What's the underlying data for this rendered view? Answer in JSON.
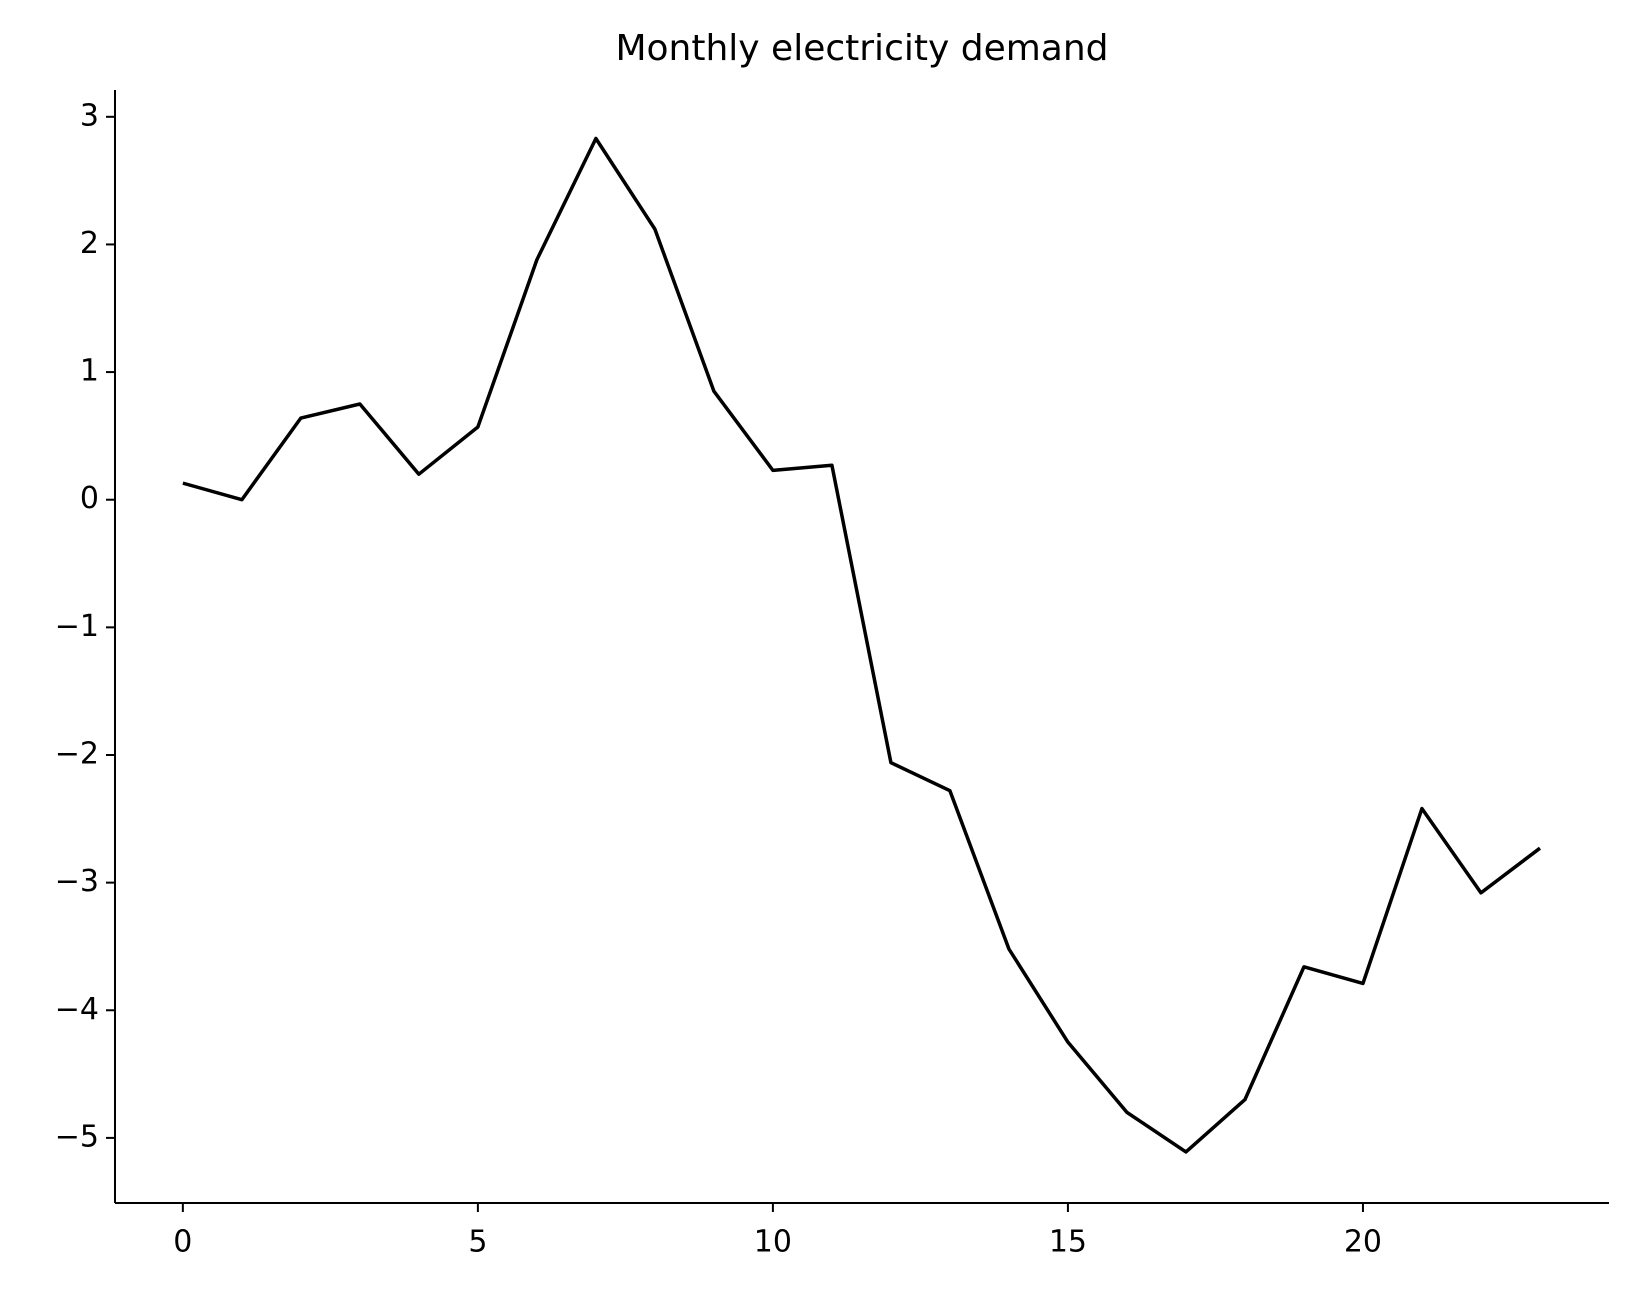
{
  "chart_data": {
    "type": "line",
    "title": "Monthly electricity demand",
    "x": [
      0,
      1,
      2,
      3,
      4,
      5,
      6,
      7,
      8,
      9,
      10,
      11,
      12,
      13,
      14,
      15,
      16,
      17,
      18,
      19,
      20,
      21,
      22,
      23
    ],
    "series": [
      {
        "name": null,
        "color": "#000000",
        "values": [
          0.13,
          0.0,
          0.64,
          0.75,
          0.2,
          0.57,
          1.88,
          2.83,
          2.12,
          0.85,
          0.23,
          0.27,
          -2.06,
          -2.28,
          -3.52,
          -4.25,
          -4.8,
          -5.11,
          -4.7,
          -3.66,
          -3.79,
          -2.42,
          -3.08,
          -2.73
        ]
      }
    ],
    "xlim": [
      -1.15,
      24.17
    ],
    "xticks": [
      0,
      5,
      10,
      15,
      20
    ],
    "ylim": [
      -5.51,
      3.21
    ],
    "yticks": [
      {
        "value": -5,
        "label": "−5"
      },
      {
        "value": -4,
        "label": "−4"
      },
      {
        "value": -3,
        "label": "−3"
      },
      {
        "value": -2,
        "label": "−2"
      },
      {
        "value": -1,
        "label": "−1"
      },
      0,
      1,
      2,
      3
    ],
    "grid": false
  }
}
